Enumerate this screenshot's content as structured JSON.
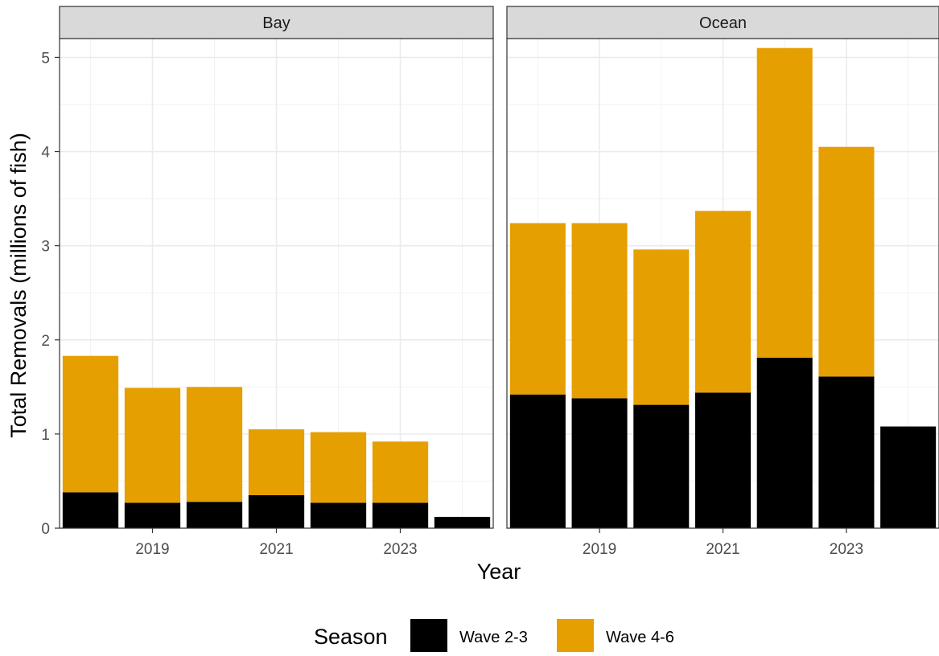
{
  "chart_data": {
    "type": "bar",
    "stacked": true,
    "xlabel": "Year",
    "ylabel": "Total Removals (millions of fish)",
    "ylim": [
      0,
      5.2
    ],
    "y_ticks": [
      0,
      1,
      2,
      3,
      4,
      5
    ],
    "x": [
      2018,
      2019,
      2020,
      2021,
      2022,
      2023,
      2024
    ],
    "x_ticks": [
      2019,
      2021,
      2023
    ],
    "xlim": [
      2017.5,
      2024.5
    ],
    "grid": true,
    "legend": {
      "title": "Season",
      "position": "bottom",
      "entries": [
        "Wave 2-3",
        "Wave 4-6"
      ]
    },
    "colors": {
      "Wave 2-3": "#000000",
      "Wave 4-6": "#E69F00"
    },
    "panels": [
      {
        "name": "Bay",
        "series": [
          {
            "name": "Wave 2-3",
            "values": [
              0.38,
              0.27,
              0.28,
              0.35,
              0.27,
              0.27,
              0.12
            ]
          },
          {
            "name": "Wave 4-6",
            "values": [
              1.45,
              1.22,
              1.22,
              0.7,
              0.75,
              0.65,
              0
            ]
          }
        ]
      },
      {
        "name": "Ocean",
        "series": [
          {
            "name": "Wave 2-3",
            "values": [
              1.42,
              1.38,
              1.31,
              1.44,
              1.81,
              1.61,
              1.08
            ]
          },
          {
            "name": "Wave 4-6",
            "values": [
              1.82,
              1.86,
              1.65,
              1.93,
              3.29,
              2.44,
              0
            ]
          }
        ]
      }
    ]
  }
}
